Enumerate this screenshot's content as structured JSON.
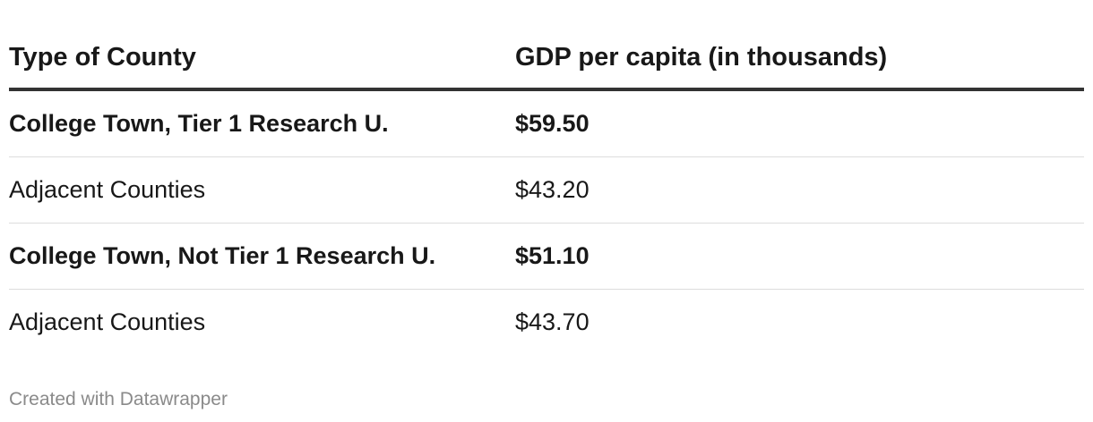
{
  "chart_data": {
    "type": "table",
    "columns": [
      "Type of County",
      "GDP per capita (in thousands)"
    ],
    "rows": [
      {
        "county_type": "College Town, Tier 1 Research U.",
        "gdp": "$59.50",
        "gdp_value": 59.5,
        "bold": true
      },
      {
        "county_type": "Adjacent Counties",
        "gdp": "$43.20",
        "gdp_value": 43.2,
        "bold": false
      },
      {
        "county_type": "College Town, Not Tier 1 Research U.",
        "gdp": "$51.10",
        "gdp_value": 51.1,
        "bold": true
      },
      {
        "county_type": "Adjacent Counties",
        "gdp": "$43.70",
        "gdp_value": 43.7,
        "bold": false
      }
    ]
  },
  "footer": {
    "credit": "Created with Datawrapper"
  }
}
